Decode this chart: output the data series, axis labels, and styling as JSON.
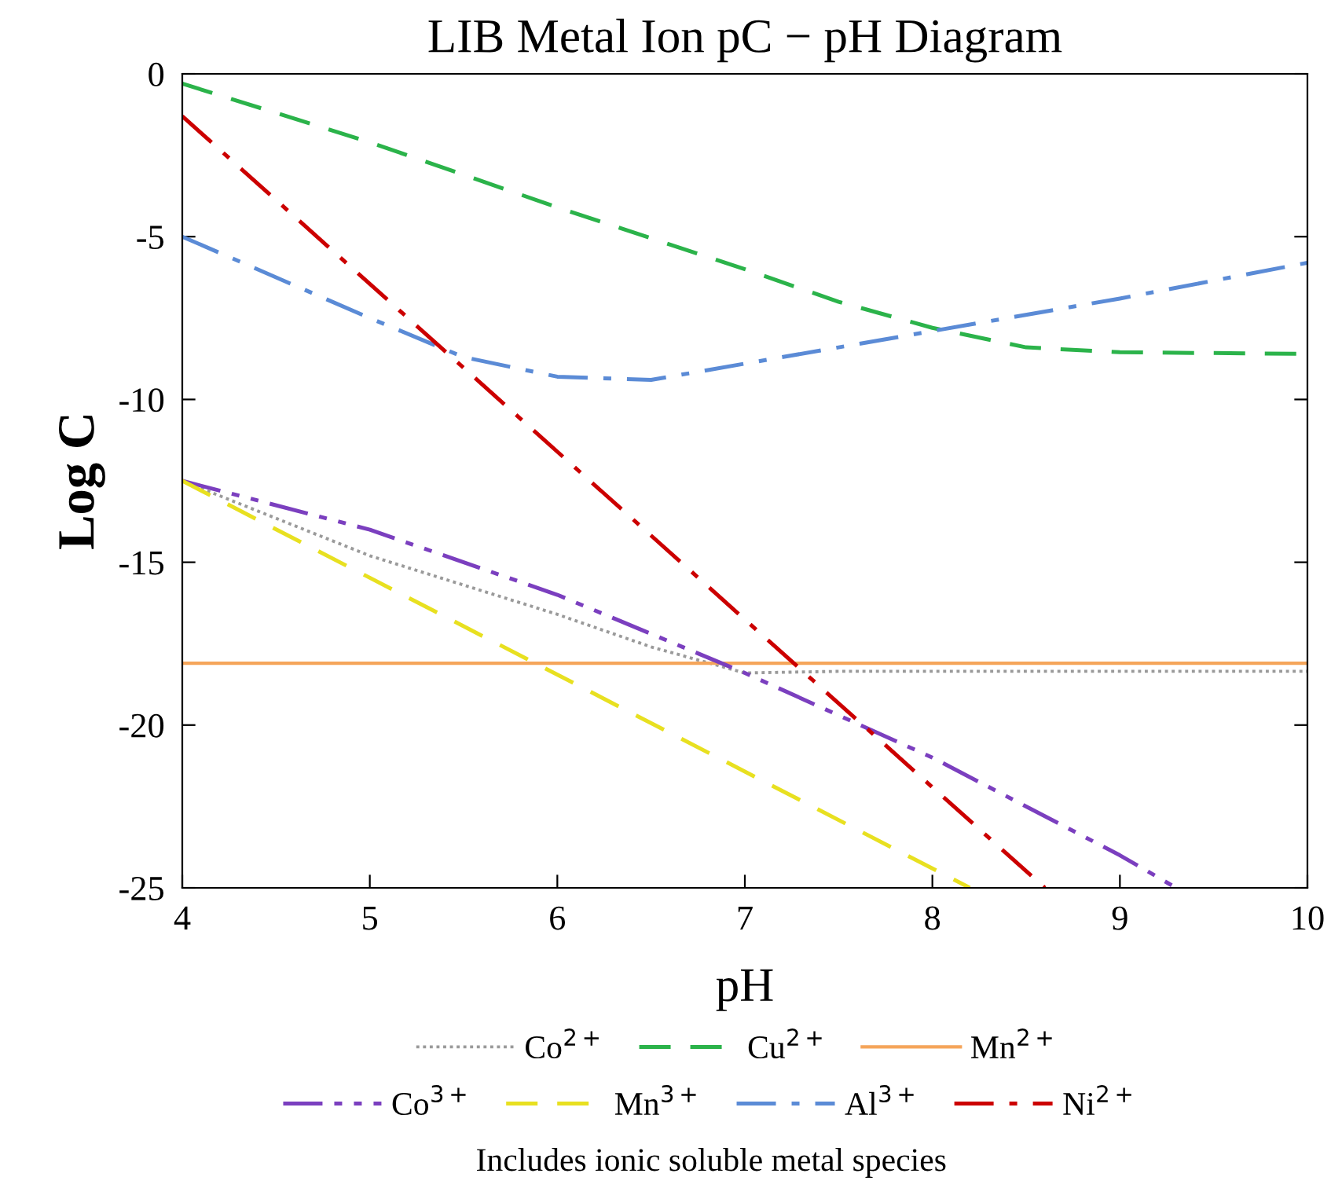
{
  "chart_data": {
    "type": "line",
    "title": "LIB Metal Ion pC − pH Diagram",
    "xlabel": "pH",
    "ylabel": "Log C",
    "xlim": [
      4,
      10
    ],
    "ylim": [
      -25,
      0
    ],
    "xticks": [
      4,
      5,
      6,
      7,
      8,
      9,
      10
    ],
    "yticks": [
      0,
      -5,
      -10,
      -15,
      -20,
      -25
    ],
    "grid": false,
    "legend": "bottom",
    "marker": "none",
    "annotations": [
      "Includes ionic soluble metal species"
    ],
    "series": [
      {
        "name": "Co$^{2+}$",
        "color": "#9a9a9a",
        "line_style": "dotted",
        "x": [
          4,
          5,
          6,
          6.5,
          7,
          7.5,
          10
        ],
        "values": [
          -12.5,
          -14.8,
          -16.6,
          -17.6,
          -18.4,
          -18.35,
          -18.35
        ]
      },
      {
        "name": "Cu$^{2+}$",
        "color": "#2bb34a",
        "line_style": "dashed",
        "x": [
          4,
          5,
          6,
          7,
          7.5,
          8,
          8.5,
          9,
          10
        ],
        "values": [
          -0.3,
          -2.1,
          -4.1,
          -6.0,
          -7.0,
          -7.8,
          -8.4,
          -8.55,
          -8.6
        ]
      },
      {
        "name": "Mn$^{2+}$",
        "color": "#f5a55a",
        "line_style": "solid",
        "x": [
          4,
          10
        ],
        "values": [
          -18.1,
          -18.1
        ]
      },
      {
        "name": "Co$^{3+}$",
        "color": "#7b3fbf",
        "line_style": "dashdotdot",
        "x": [
          4,
          5,
          6,
          7,
          8,
          9,
          9.3
        ],
        "values": [
          -12.5,
          -14.0,
          -16.0,
          -18.4,
          -21.0,
          -24.0,
          -25
        ]
      },
      {
        "name": "Mn$^{3+}$",
        "color": "#e8e020",
        "line_style": "dashed",
        "x": [
          4,
          8.2
        ],
        "values": [
          -12.5,
          -25
        ]
      },
      {
        "name": "Al$^{3+}$",
        "color": "#5b8bd6",
        "line_style": "dashdot",
        "x": [
          4,
          5,
          5.5,
          6,
          6.5,
          7,
          8,
          9,
          10
        ],
        "values": [
          -5.0,
          -7.5,
          -8.7,
          -9.3,
          -9.4,
          -8.9,
          -7.9,
          -6.9,
          -5.8
        ]
      },
      {
        "name": "Ni$^{2+}$",
        "color": "#cc0000",
        "line_style": "dashdot",
        "x": [
          4,
          8.6
        ],
        "values": [
          -1.3,
          -25
        ]
      }
    ]
  }
}
